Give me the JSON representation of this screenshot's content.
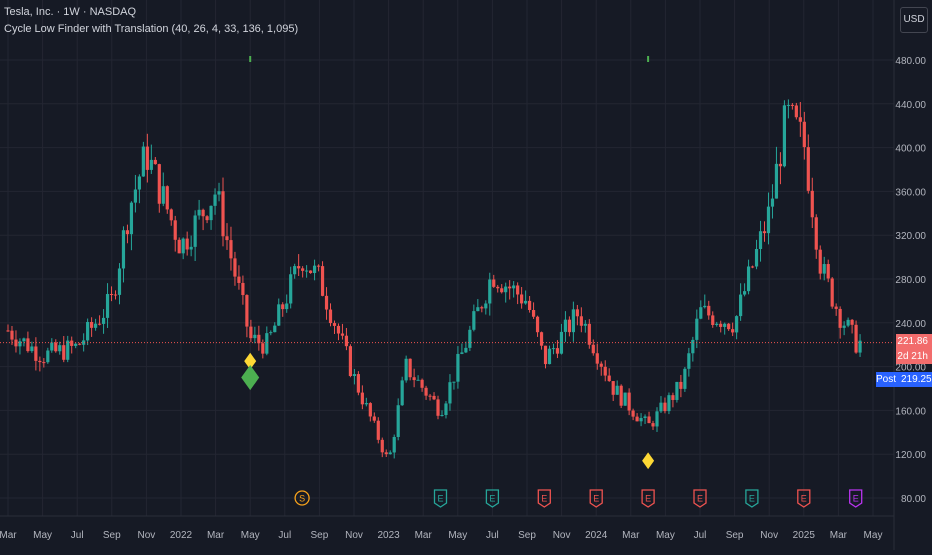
{
  "header": {
    "symbol_line": "Tesla, Inc. · 1W · NASDAQ",
    "indicator_line": "Cycle Low Finder with Translation (40, 26, 4, 33, 136, 1,095)"
  },
  "currency_button": "USD",
  "price_tags": {
    "last_price": "221.86",
    "countdown": "2d 21h",
    "post_label": "Post",
    "post_price": "219.25"
  },
  "colors": {
    "background": "#161a25",
    "grid": "#232632",
    "up": "#26a69a",
    "down": "#ef5350",
    "cycle_marker_green": "#4caf50",
    "cycle_marker_yellow": "#fdd835",
    "earnings_green": "#26a69a",
    "earnings_red": "#ef5350",
    "dividend_orange": "#f7a21b",
    "post_blue": "#2962ff",
    "price_line": "#ef5350"
  },
  "chart_data": {
    "type": "candlestick",
    "title": "Tesla, Inc. · 1W · NASDAQ",
    "ylim": [
      70,
      500
    ],
    "y_ticks": [
      "80.00",
      "120.00",
      "160.00",
      "200.00",
      "240.00",
      "280.00",
      "320.00",
      "360.00",
      "400.00",
      "440.00",
      "480.00"
    ],
    "x_ticks": [
      "Mar",
      "May",
      "Jul",
      "Sep",
      "Nov",
      "2022",
      "Mar",
      "May",
      "Jul",
      "Sep",
      "Nov",
      "2023",
      "Mar",
      "May",
      "Jul",
      "Sep",
      "Nov",
      "2024",
      "Mar",
      "May",
      "Jul",
      "Sep",
      "Nov",
      "2025",
      "Mar",
      "May"
    ],
    "x_range": [
      "2021-03",
      "2025-05"
    ],
    "last_price": 221.86,
    "key_values": [
      {
        "date": "2021-03",
        "close": 233
      },
      {
        "date": "2021-05",
        "close": 210
      },
      {
        "date": "2021-07",
        "close": 218
      },
      {
        "date": "2021-09",
        "close": 260
      },
      {
        "date": "2021-10",
        "close": 345
      },
      {
        "date": "2021-11",
        "close": 395
      },
      {
        "date": "2022-01",
        "close": 310
      },
      {
        "date": "2022-03",
        "close": 360
      },
      {
        "date": "2022-05",
        "close": 225
      },
      {
        "date": "2022-06",
        "close": 220
      },
      {
        "date": "2022-08",
        "close": 300
      },
      {
        "date": "2022-09",
        "close": 280
      },
      {
        "date": "2022-11",
        "close": 190
      },
      {
        "date": "2023-01",
        "close": 112
      },
      {
        "date": "2023-02",
        "close": 200
      },
      {
        "date": "2023-04",
        "close": 160
      },
      {
        "date": "2023-07",
        "close": 285
      },
      {
        "date": "2023-09",
        "close": 260
      },
      {
        "date": "2023-10",
        "close": 205
      },
      {
        "date": "2023-12",
        "close": 250
      },
      {
        "date": "2024-02",
        "close": 180
      },
      {
        "date": "2024-04",
        "close": 145
      },
      {
        "date": "2024-06",
        "close": 185
      },
      {
        "date": "2024-07",
        "close": 250
      },
      {
        "date": "2024-09",
        "close": 240
      },
      {
        "date": "2024-11",
        "close": 340
      },
      {
        "date": "2024-12",
        "close": 430
      },
      {
        "date": "2025-01",
        "close": 405
      },
      {
        "date": "2025-02",
        "close": 290
      },
      {
        "date": "2025-03",
        "close": 250
      },
      {
        "date": "2025-04",
        "close": 222
      }
    ],
    "cycle_markers": [
      {
        "date": "2022-05",
        "value": 205,
        "shape": "diamond",
        "color": "yellow",
        "size": "small"
      },
      {
        "date": "2022-05",
        "value": 190,
        "shape": "diamond",
        "color": "green",
        "size": "large"
      },
      {
        "date": "2024-04",
        "value": 114,
        "shape": "diamond",
        "color": "yellow",
        "size": "small"
      }
    ],
    "event_flags": [
      {
        "date": "2022-08",
        "kind": "S",
        "color": "orange"
      },
      {
        "date": "2023-04",
        "kind": "E",
        "color": "green"
      },
      {
        "date": "2023-07",
        "kind": "E",
        "color": "green"
      },
      {
        "date": "2023-10",
        "kind": "E",
        "color": "red"
      },
      {
        "date": "2024-01",
        "kind": "E",
        "color": "red"
      },
      {
        "date": "2024-04",
        "kind": "E",
        "color": "red"
      },
      {
        "date": "2024-07",
        "kind": "E",
        "color": "red"
      },
      {
        "date": "2024-10",
        "kind": "E",
        "color": "green"
      },
      {
        "date": "2025-01",
        "kind": "E",
        "color": "red"
      },
      {
        "date": "2025-04",
        "kind": "E",
        "color": "purple"
      }
    ]
  }
}
